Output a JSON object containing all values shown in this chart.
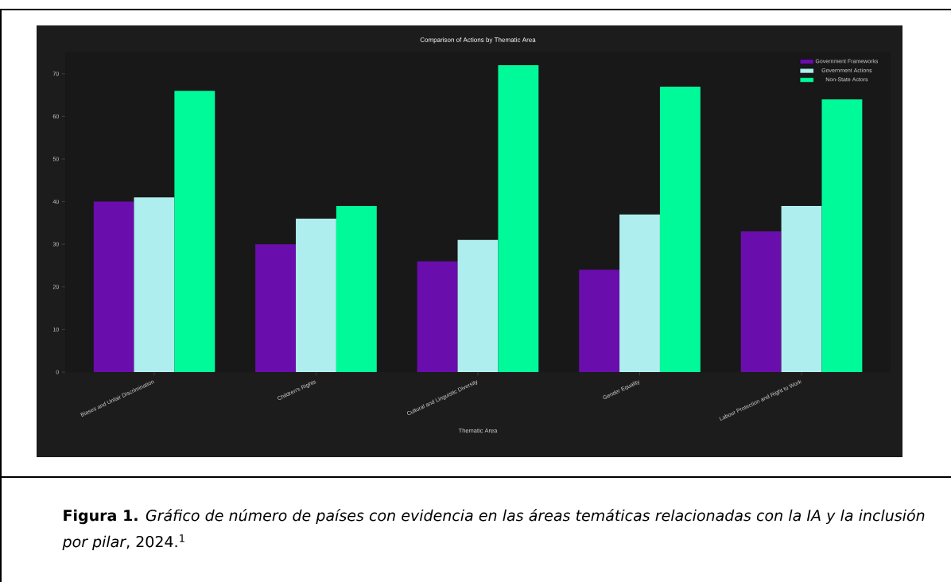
{
  "chart_data": {
    "type": "bar",
    "title": "Comparison of Actions by Thematic Area",
    "xlabel": "Thematic Area",
    "categories": [
      "Biases and Unfair Discrimination",
      "Children's Rights",
      "Cultural and Linguistic Diversity",
      "Gender Equality",
      "Labour Protection and Right to Work"
    ],
    "series": [
      {
        "name": "Government Frameworks",
        "color": "#6a0dad",
        "values": [
          40,
          30,
          26,
          24,
          33
        ]
      },
      {
        "name": "Government Actions",
        "color": "#afeeee",
        "values": [
          41,
          36,
          31,
          37,
          39
        ]
      },
      {
        "name": "Non-State Actors",
        "color": "#00fa9a",
        "values": [
          66,
          39,
          72,
          67,
          64
        ]
      }
    ],
    "ylim": [
      0,
      75
    ],
    "yticks": [
      0,
      10,
      20,
      30,
      40,
      50,
      60,
      70
    ],
    "legend": "top right",
    "annotations": [
      "**Figura 1.** *Gráfico de número de países con evidencia en las áreas temáticas relacionadas con la IA y la inclusión por pilar*, 2024.$^{1}$"
    ]
  }
}
